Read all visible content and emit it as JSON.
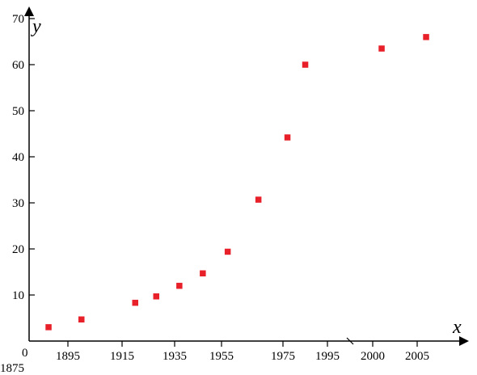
{
  "chart_data": {
    "type": "scatter",
    "title": "",
    "xlabel": "x",
    "ylabel": "y",
    "origin_label": "0",
    "x_origin_year": "1875",
    "x_tick_labels": [
      "1895",
      "1915",
      "1935",
      "1955",
      "1975",
      "1995",
      "2000",
      "2005"
    ],
    "y_tick_labels": [
      "10",
      "20",
      "30",
      "40",
      "50",
      "60",
      "70"
    ],
    "y_ticks": [
      10,
      20,
      30,
      40,
      50,
      60,
      70
    ],
    "ylim": [
      0,
      70
    ],
    "grid": false,
    "marker_color": "#e8202a",
    "points": [
      {
        "x": 1885,
        "y": 3.0
      },
      {
        "x": 1900,
        "y": 4.7
      },
      {
        "x": 1920,
        "y": 8.3
      },
      {
        "x": 1928,
        "y": 9.7
      },
      {
        "x": 1937,
        "y": 12.0
      },
      {
        "x": 1947,
        "y": 14.7
      },
      {
        "x": 1957,
        "y": 19.4
      },
      {
        "x": 1967,
        "y": 30.7
      },
      {
        "x": 1977,
        "y": 44.2
      },
      {
        "x": 1985,
        "y": 60.0
      },
      {
        "x": 2001,
        "y": 63.5
      },
      {
        "x": 2006,
        "y": 66.0
      }
    ]
  }
}
